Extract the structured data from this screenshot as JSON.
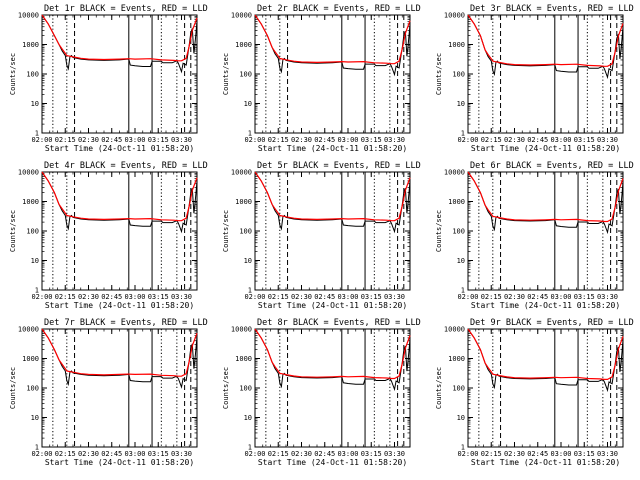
{
  "chart_data": {
    "type": "line",
    "layout": "3x3 grid",
    "y_scale": "log",
    "ylim": [
      1,
      10000
    ],
    "y_ticks": [
      "1",
      "10",
      "100",
      "1000",
      "10000"
    ],
    "x_range": [
      "02:00",
      "03:40"
    ],
    "x_ticks": [
      "02:00",
      "02:15",
      "02:30",
      "02:45",
      "03:00",
      "03:15",
      "03:30"
    ],
    "xlabel": "Start Time (24-Oct-11 01:58:20)",
    "ylabel": "Counts/sec",
    "series_colors": {
      "events": "#000000",
      "lld": "#ff0000"
    },
    "markers": {
      "dotted": [
        "02:07",
        "02:16",
        "03:17",
        "03:27"
      ],
      "dashed": [
        "02:21",
        "03:32",
        "03:36"
      ],
      "solid": [
        "02:56",
        "03:11"
      ]
    },
    "panels": [
      {
        "title": "Det 1r  BLACK = Events,  RED = LLD",
        "scale": 1.0
      },
      {
        "title": "Det 2r  BLACK = Events,  RED = LLD",
        "scale": 0.8
      },
      {
        "title": "Det 3r  BLACK = Events,  RED = LLD",
        "scale": 0.65
      },
      {
        "title": "Det 4r  BLACK = Events,  RED = LLD",
        "scale": 0.8
      },
      {
        "title": "Det 5r  BLACK = Events,  RED = LLD",
        "scale": 0.8
      },
      {
        "title": "Det 6r  BLACK = Events,  RED = LLD",
        "scale": 0.75
      },
      {
        "title": "Det 7r  BLACK = Events,  RED = LLD",
        "scale": 0.9
      },
      {
        "title": "Det 8r  BLACK = Events,  RED = LLD",
        "scale": 0.75
      },
      {
        "title": "Det 9r  BLACK = Events,  RED = LLD",
        "scale": 0.7
      }
    ],
    "events_profile": [
      [
        "02:00",
        10000
      ],
      [
        "02:04",
        5000
      ],
      [
        "02:08",
        2000
      ],
      [
        "02:11",
        1000
      ],
      [
        "02:13",
        600
      ],
      [
        "02:15",
        420
      ],
      [
        "02:16",
        200
      ],
      [
        "02:17",
        150
      ],
      [
        "02:18",
        380
      ],
      [
        "02:19",
        420
      ],
      [
        "02:20",
        360
      ],
      [
        "02:25",
        320
      ],
      [
        "02:30",
        300
      ],
      [
        "02:40",
        290
      ],
      [
        "02:50",
        300
      ],
      [
        "02:56",
        320
      ],
      [
        "02:57",
        200
      ],
      [
        "03:00",
        190
      ],
      [
        "03:05",
        180
      ],
      [
        "03:10",
        180
      ],
      [
        "03:11",
        270
      ],
      [
        "03:17",
        270
      ],
      [
        "03:18",
        240
      ],
      [
        "03:24",
        240
      ],
      [
        "03:27",
        280
      ],
      [
        "03:28",
        230
      ],
      [
        "03:30",
        120
      ],
      [
        "03:31",
        230
      ],
      [
        "03:33",
        200
      ],
      [
        "03:35",
        1000
      ],
      [
        "03:36",
        2500
      ],
      [
        "03:37",
        3500
      ],
      [
        "03:38",
        500
      ],
      [
        "03:39",
        1500
      ],
      [
        "03:40",
        6000
      ]
    ],
    "lld_profile": [
      [
        "02:00",
        10000
      ],
      [
        "02:04",
        5000
      ],
      [
        "02:08",
        2000
      ],
      [
        "02:11",
        1000
      ],
      [
        "02:13",
        700
      ],
      [
        "02:15",
        500
      ],
      [
        "02:16",
        420
      ],
      [
        "02:18",
        400
      ],
      [
        "02:20",
        380
      ],
      [
        "02:25",
        340
      ],
      [
        "02:30",
        320
      ],
      [
        "02:40",
        310
      ],
      [
        "02:50",
        320
      ],
      [
        "02:56",
        330
      ],
      [
        "03:00",
        320
      ],
      [
        "03:10",
        330
      ],
      [
        "03:17",
        300
      ],
      [
        "03:25",
        290
      ],
      [
        "03:28",
        280
      ],
      [
        "03:30",
        280
      ],
      [
        "03:33",
        340
      ],
      [
        "03:35",
        900
      ],
      [
        "03:37",
        3000
      ],
      [
        "03:40",
        8000
      ]
    ]
  }
}
